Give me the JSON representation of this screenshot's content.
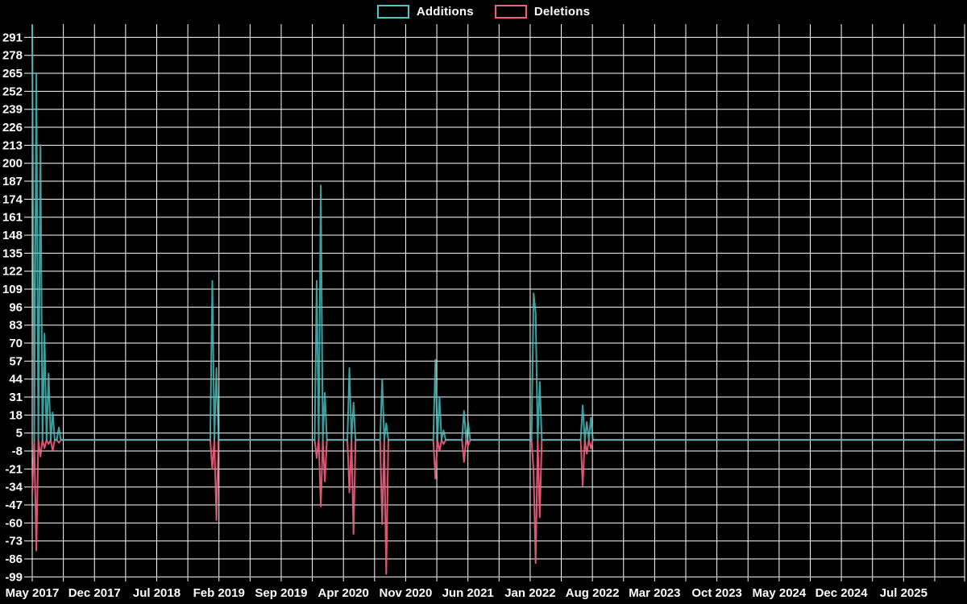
{
  "legend": {
    "items": [
      {
        "label": "Additions",
        "color": "#4ec5c5"
      },
      {
        "label": "Deletions",
        "color": "#f2607f"
      }
    ]
  },
  "colors": {
    "background": "#000000",
    "grid": "#ffffff",
    "text": "#ffffff",
    "additions": "#4ec5c5",
    "deletions": "#f2607f"
  },
  "chart_data": {
    "type": "line",
    "title": "",
    "grid": true,
    "legend_position": "top-center",
    "x_axis": {
      "tick_labels": [
        "May 2017",
        "Dec 2017",
        "Jul 2018",
        "Feb 2019",
        "Sep 2019",
        "Apr 2020",
        "Nov 2020",
        "Jun 2021",
        "Jan 2022",
        "Aug 2022",
        "Mar 2023",
        "Oct 2023",
        "May 2024",
        "Dec 2024",
        "Jul 2025"
      ],
      "months_per_label": 7
    },
    "y_axis": {
      "tick_labels": [
        "291",
        "278",
        "265",
        "252",
        "239",
        "226",
        "213",
        "200",
        "187",
        "174",
        "161",
        "148",
        "135",
        "122",
        "109",
        "96",
        "83",
        "70",
        "57",
        "44",
        "31",
        "18",
        "5",
        "-8",
        "-21",
        "-34",
        "-47",
        "-60",
        "-73",
        "-86",
        "-99"
      ],
      "min": -99,
      "max": 291,
      "step": 13
    },
    "series": [
      {
        "name": "Additions",
        "key": "additions",
        "color": "#4ec5c5"
      },
      {
        "name": "Deletions",
        "key": "deletions",
        "color": "#f2607f"
      }
    ],
    "weeks_total": 456,
    "baseline": 0,
    "weekly_events": [
      {
        "week": 0,
        "additions": 300,
        "deletions": -39
      },
      {
        "week": 2,
        "additions": 265,
        "deletions": -80
      },
      {
        "week": 4,
        "additions": 213,
        "deletions": -12
      },
      {
        "week": 6,
        "additions": 77,
        "deletions": -6
      },
      {
        "week": 8,
        "additions": 48,
        "deletions": -3
      },
      {
        "week": 10,
        "additions": 20,
        "deletions": -8
      },
      {
        "week": 13,
        "additions": 9,
        "deletions": -2
      },
      {
        "week": 88,
        "additions": 115,
        "deletions": -21
      },
      {
        "week": 90,
        "additions": 52,
        "deletions": -58
      },
      {
        "week": 139,
        "additions": 115,
        "deletions": -13
      },
      {
        "week": 141,
        "additions": 184,
        "deletions": -48
      },
      {
        "week": 143,
        "additions": 34,
        "deletions": -30
      },
      {
        "week": 155,
        "additions": 52,
        "deletions": -38
      },
      {
        "week": 157,
        "additions": 27,
        "deletions": -68
      },
      {
        "week": 171,
        "additions": 44,
        "deletions": -61
      },
      {
        "week": 173,
        "additions": 12,
        "deletions": -97
      },
      {
        "week": 197,
        "additions": 58,
        "deletions": -28
      },
      {
        "week": 199,
        "additions": 31,
        "deletions": -8
      },
      {
        "week": 201,
        "additions": 7,
        "deletions": -3
      },
      {
        "week": 211,
        "additions": 21,
        "deletions": -16
      },
      {
        "week": 213,
        "additions": 13,
        "deletions": -4
      },
      {
        "week": 245,
        "additions": 106,
        "deletions": -23
      },
      {
        "week": 246,
        "additions": 92,
        "deletions": -89
      },
      {
        "week": 248,
        "additions": 42,
        "deletions": -56
      },
      {
        "week": 269,
        "additions": 25,
        "deletions": -33
      },
      {
        "week": 271,
        "additions": 13,
        "deletions": -10
      },
      {
        "week": 273,
        "additions": 16,
        "deletions": -6
      }
    ]
  }
}
